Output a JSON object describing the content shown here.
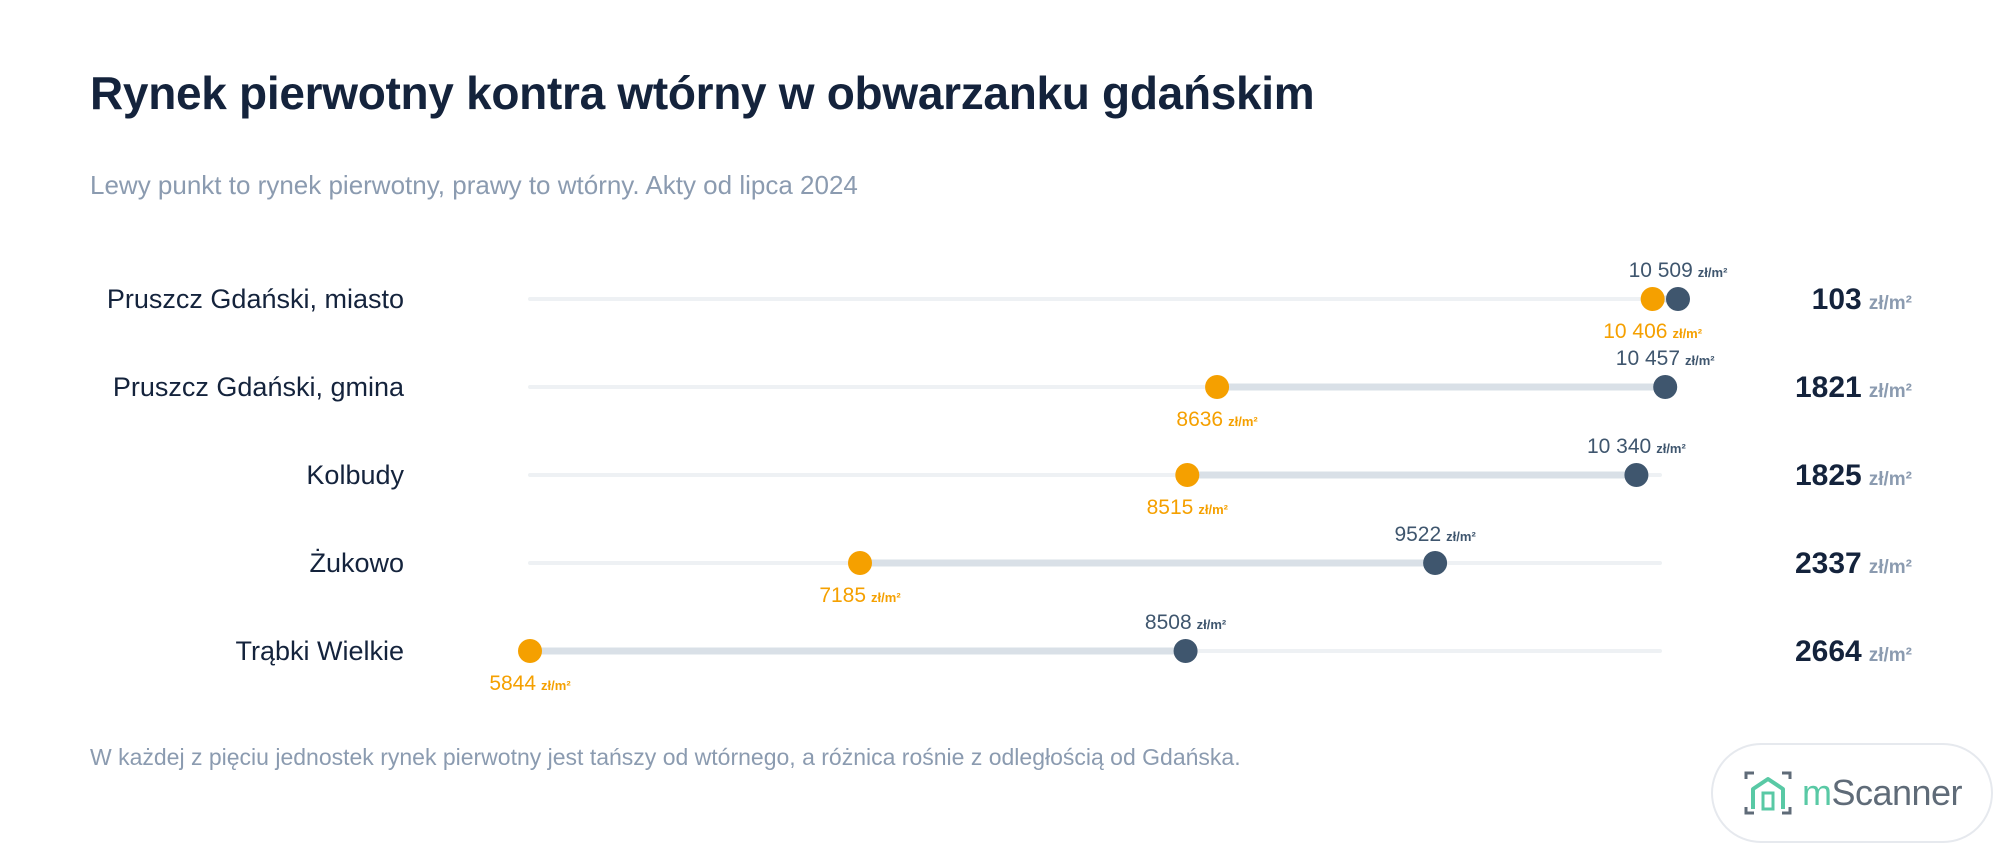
{
  "header": {
    "title": "Rynek pierwotny kontra wtórny w obwarzanku gdańskim",
    "subtitle": "Lewy punkt to rynek pierwotny, prawy to wtórny. Akty od lipca 2024"
  },
  "footer": {
    "note": "W każdej z pięciu jednostek rynek pierwotny jest tańszy od wtórnego, a różnica rośnie z odległością od Gdańska."
  },
  "logo": {
    "m": "m",
    "rest": "Scanner",
    "icon": "house-bracket-icon"
  },
  "colors": {
    "primary": "#f5a000",
    "secondary": "#3f566e",
    "label": "#14233c",
    "track": "#eef1f4",
    "range": "#d9e0e7",
    "unit": "#8b9bb0",
    "logo_accent": "#59c9a5"
  },
  "chart_data": {
    "type": "dumbbell",
    "title": "Rynek pierwotny kontra wtórny w obwarzanku gdańskim",
    "unit": "zł/m²",
    "xlim": [
      5844,
      10509
    ],
    "categories": [
      "Pruszcz Gdański, miasto",
      "Pruszcz Gdański, gmina",
      "Kolbudy",
      "Żukowo",
      "Trąbki Wielkie"
    ],
    "series": [
      {
        "values": [
          10406,
          8636,
          8515,
          7185,
          5844
        ],
        "labels": [
          "10 406",
          "8636",
          "8515",
          "7185",
          "5844"
        ]
      },
      {
        "values": [
          10509,
          10457,
          10340,
          9522,
          8508
        ],
        "labels": [
          "10 509",
          "10 457",
          "10 340",
          "9522",
          "8508"
        ]
      }
    ],
    "differences": [
      103,
      1821,
      1825,
      2337,
      2664
    ],
    "difference_labels": [
      "103",
      "1821",
      "1825",
      "2337",
      "2664"
    ]
  }
}
